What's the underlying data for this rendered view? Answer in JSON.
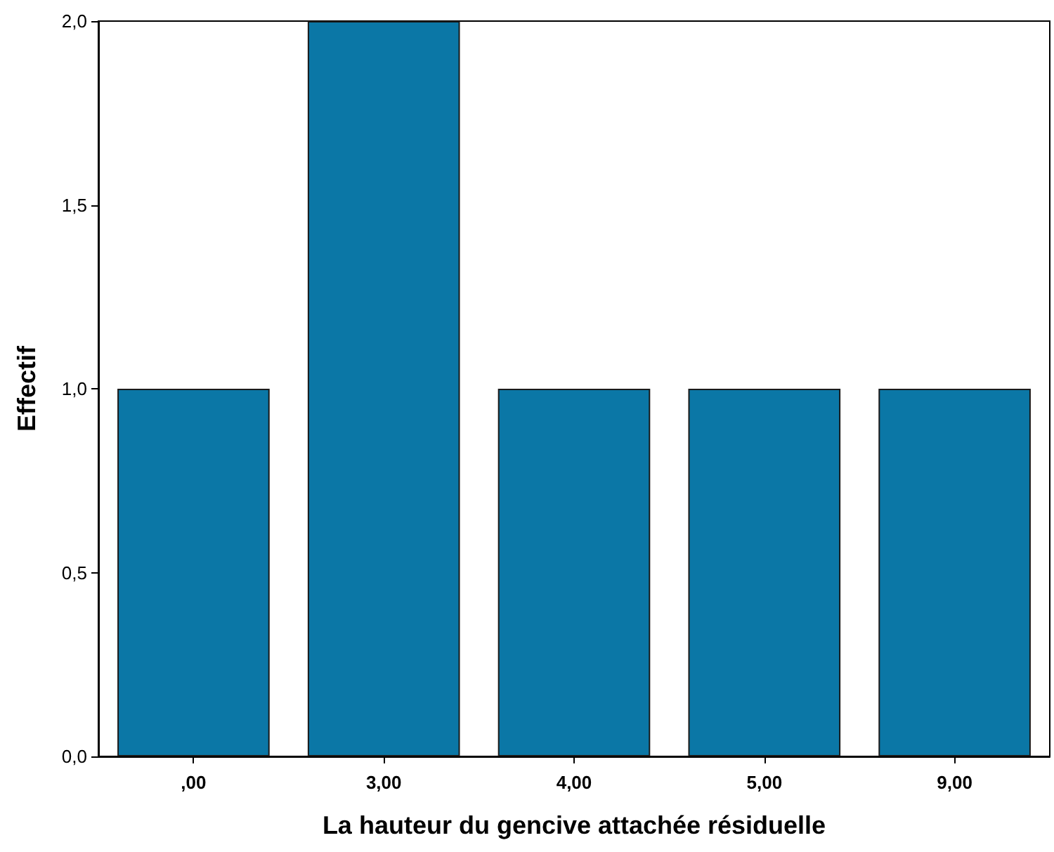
{
  "chart_data": {
    "type": "bar",
    "xlabel": "La hauteur du gencive attachée résiduelle",
    "ylabel": "Effectif",
    "categories": [
      ",00",
      "3,00",
      "4,00",
      "5,00",
      "9,00"
    ],
    "values": [
      1,
      2,
      1,
      1,
      1
    ],
    "color": "#0b77a6",
    "ylim": [
      0,
      2
    ],
    "yticks": [
      {
        "value": 0,
        "label": "0,0"
      },
      {
        "value": 0.5,
        "label": "0,5"
      },
      {
        "value": 1,
        "label": "1,0"
      },
      {
        "value": 1.5,
        "label": "1,5"
      },
      {
        "value": 2,
        "label": "2,0"
      }
    ],
    "grid": false
  }
}
